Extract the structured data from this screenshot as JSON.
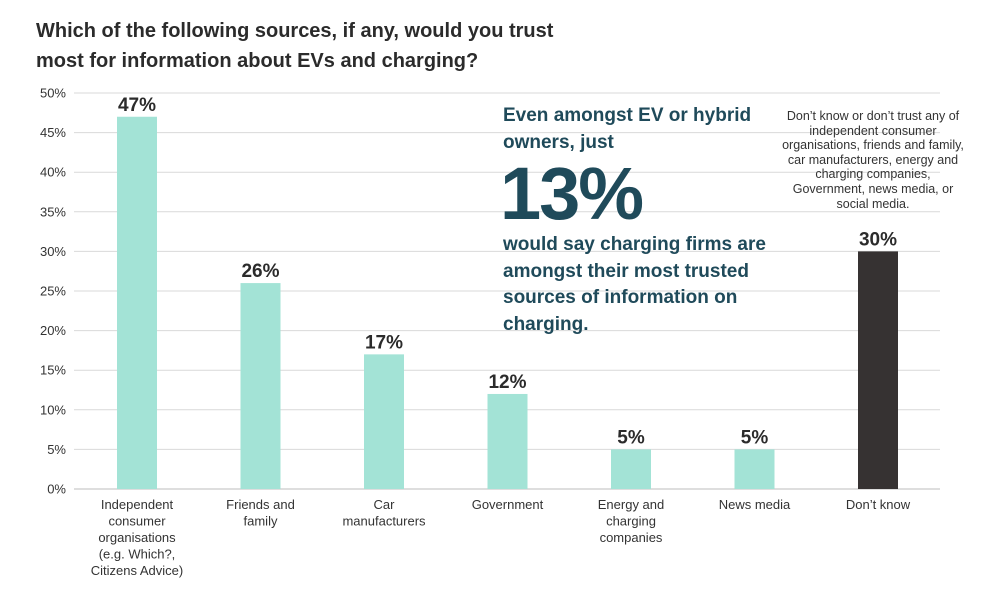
{
  "title": "Which of the following sources, if any, would you trust most for information about EVs and charging?",
  "callout": {
    "line1": "Even amongst EV or hybrid owners, just",
    "big_value": "13%",
    "line2": "would say charging firms are amongst their most trusted sources of information on charging."
  },
  "dont_know_note": "Don’t know or don’t trust any of independent consumer organisations, friends and family, car manufacturers, energy and charging companies, Government, news media, or social media.",
  "colors": {
    "bar": "#a3e3d6",
    "highlight_bar": "#363232",
    "grid": "#d9d9d9",
    "text": "#333333",
    "callout": "#1f4a5a"
  },
  "chart_data": {
    "type": "bar",
    "title": "Which of the following sources, if any, would you trust most for information about EVs and charging?",
    "xlabel": "",
    "ylabel": "",
    "ylim": [
      0,
      50
    ],
    "y_ticks": [
      0,
      5,
      10,
      15,
      20,
      25,
      30,
      35,
      40,
      45,
      50
    ],
    "y_tick_labels": [
      "0%",
      "5%",
      "10%",
      "15%",
      "20%",
      "25%",
      "30%",
      "35%",
      "40%",
      "45%",
      "50%"
    ],
    "grid": true,
    "categories": [
      "Independent consumer organisations (e.g. Which?, Citizens Advice)",
      "Friends and family",
      "Car manufacturers",
      "Government",
      "Energy and charging companies",
      "News media",
      "Don’t know"
    ],
    "category_label_lines": [
      [
        "Independent",
        "consumer",
        "organisations",
        "(e.g. Which?,",
        "Citizens Advice)"
      ],
      [
        "Friends and",
        "family"
      ],
      [
        "Car",
        "manufacturers"
      ],
      [
        "Government"
      ],
      [
        "Energy and",
        "charging",
        "companies"
      ],
      [
        "News media"
      ],
      [
        "Don’t know"
      ]
    ],
    "values": [
      47,
      26,
      17,
      12,
      5,
      5,
      30
    ],
    "data_labels": [
      "47%",
      "26%",
      "17%",
      "12%",
      "5%",
      "5%",
      "30%"
    ],
    "highlight_index": 6
  }
}
